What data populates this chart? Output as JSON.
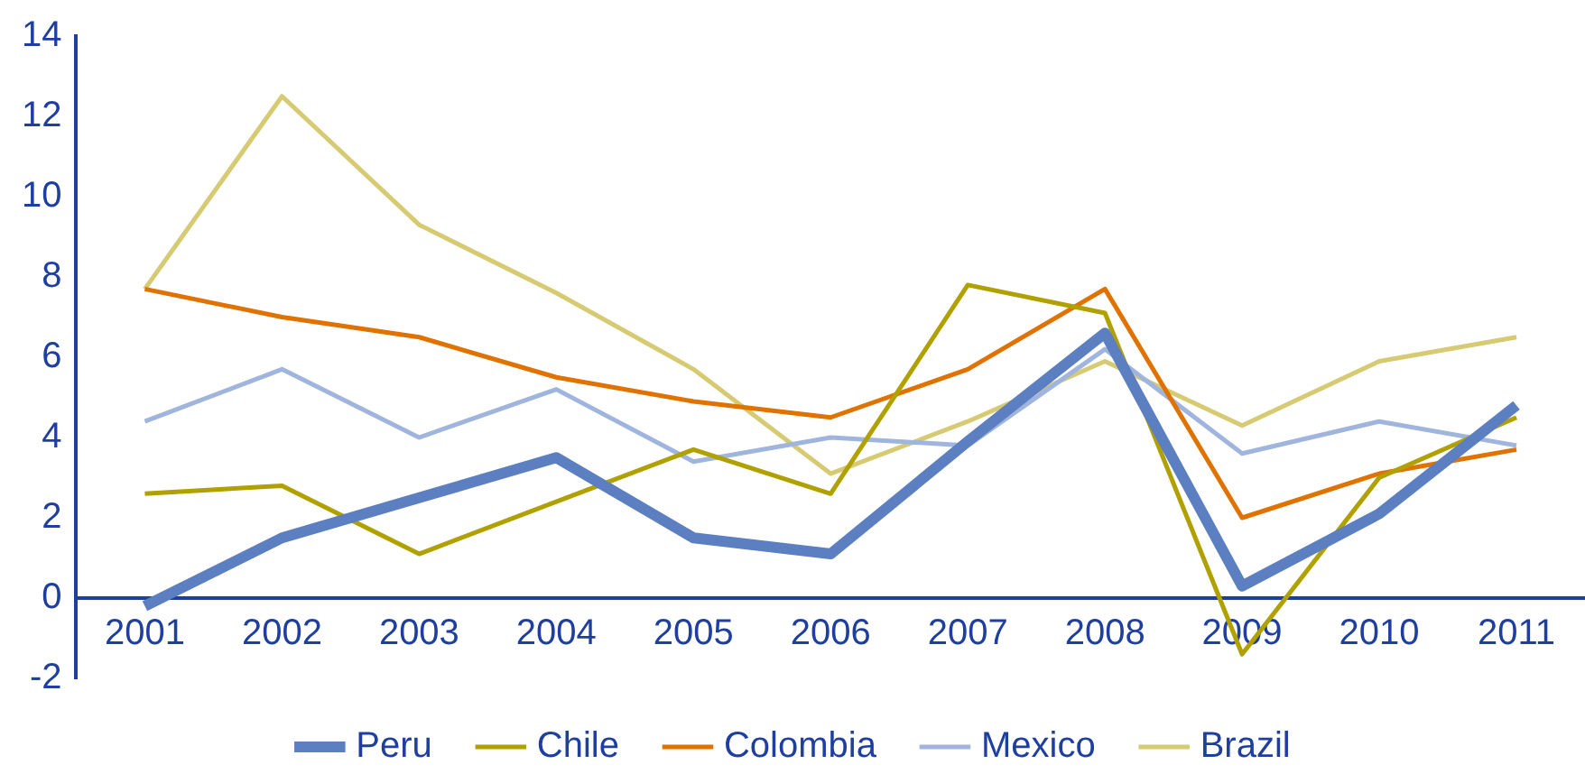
{
  "chart_data": {
    "type": "line",
    "categories": [
      "2001",
      "2002",
      "2003",
      "2004",
      "2005",
      "2006",
      "2007",
      "2008",
      "2009",
      "2010",
      "2011"
    ],
    "series": [
      {
        "name": "Peru",
        "color": "#5b7fc0",
        "values": [
          -0.2,
          1.5,
          2.5,
          3.5,
          1.5,
          1.1,
          3.9,
          6.6,
          0.3,
          2.1,
          4.8
        ]
      },
      {
        "name": "Chile",
        "color": "#b0a100",
        "values": [
          2.6,
          2.8,
          1.1,
          2.4,
          3.7,
          2.6,
          7.8,
          7.1,
          -1.4,
          3.0,
          4.5
        ]
      },
      {
        "name": "Colombia",
        "color": "#e07200",
        "values": [
          7.7,
          7.0,
          6.5,
          5.5,
          4.9,
          4.5,
          5.7,
          7.7,
          2.0,
          3.1,
          3.7
        ]
      },
      {
        "name": "Mexico",
        "color": "#9fb5de",
        "values": [
          4.4,
          5.7,
          4.0,
          5.2,
          3.4,
          4.0,
          3.8,
          6.2,
          3.6,
          4.4,
          3.8
        ]
      },
      {
        "name": "Brazil",
        "color": "#d6ca72",
        "values": [
          7.7,
          12.5,
          9.3,
          7.6,
          5.7,
          3.1,
          4.4,
          5.9,
          4.3,
          5.9,
          6.5
        ]
      }
    ],
    "ylim": [
      -2,
      14
    ],
    "yticks": [
      -2,
      0,
      2,
      4,
      6,
      8,
      10,
      12,
      14
    ],
    "grid": false,
    "legend": "bottom",
    "marker": "none",
    "line_style": "solid"
  }
}
